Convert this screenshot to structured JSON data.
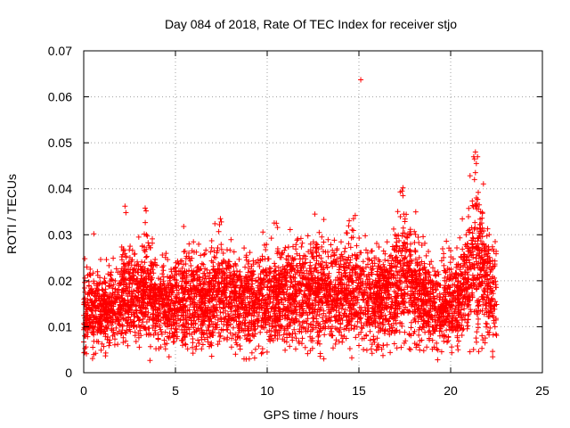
{
  "chart_data": {
    "type": "scatter",
    "title": "Day 084 of 2018, Rate Of TEC Index for receiver stjo",
    "xlabel": "GPS time / hours",
    "ylabel": "ROTI / TECUs",
    "xlim": [
      0,
      25
    ],
    "ylim": [
      0,
      0.07
    ],
    "xticks": [
      0,
      5,
      10,
      15,
      20,
      25
    ],
    "xtick_labels": [
      "0",
      "5",
      "10",
      "15",
      "20",
      "25"
    ],
    "yticks": [
      0,
      0.01,
      0.02,
      0.03,
      0.04,
      0.05,
      0.06,
      0.07
    ],
    "ytick_labels": [
      "0",
      "0.01",
      "0.02",
      "0.03",
      "0.04",
      "0.05",
      "0.06",
      "0.07"
    ],
    "grid": true,
    "marker": "+",
    "color": "#ff0000",
    "x_extent_hours": [
      0,
      22.5
    ],
    "typical_range": [
      0.003,
      0.025
    ],
    "envelope": [
      [
        0.0,
        0.024
      ],
      [
        1.0,
        0.025
      ],
      [
        2.0,
        0.026
      ],
      [
        2.3,
        0.036
      ],
      [
        3.0,
        0.029
      ],
      [
        3.3,
        0.036
      ],
      [
        4.0,
        0.027
      ],
      [
        5.0,
        0.028
      ],
      [
        5.5,
        0.031
      ],
      [
        6.5,
        0.028
      ],
      [
        7.5,
        0.033
      ],
      [
        8.5,
        0.028
      ],
      [
        9.5,
        0.029
      ],
      [
        10.5,
        0.032
      ],
      [
        11.5,
        0.031
      ],
      [
        12.5,
        0.034
      ],
      [
        13.5,
        0.031
      ],
      [
        14.8,
        0.034
      ],
      [
        15.5,
        0.03
      ],
      [
        16.5,
        0.031
      ],
      [
        17.5,
        0.04
      ],
      [
        18.5,
        0.03
      ],
      [
        19.5,
        0.027
      ],
      [
        20.5,
        0.03
      ],
      [
        21.4,
        0.048
      ],
      [
        22.5,
        0.03
      ]
    ],
    "outliers": [
      {
        "x": 15.1,
        "y": 0.0637
      },
      {
        "x": 21.35,
        "y": 0.048
      },
      {
        "x": 21.3,
        "y": 0.0465
      },
      {
        "x": 21.4,
        "y": 0.0455
      },
      {
        "x": 21.35,
        "y": 0.0435
      },
      {
        "x": 21.3,
        "y": 0.042
      },
      {
        "x": 21.4,
        "y": 0.038
      },
      {
        "x": 21.35,
        "y": 0.0365
      },
      {
        "x": 17.4,
        "y": 0.0402
      },
      {
        "x": 17.35,
        "y": 0.0395
      },
      {
        "x": 17.4,
        "y": 0.0385
      },
      {
        "x": 17.45,
        "y": 0.0345
      },
      {
        "x": 2.25,
        "y": 0.0362
      },
      {
        "x": 2.3,
        "y": 0.0348
      },
      {
        "x": 3.35,
        "y": 0.0358
      },
      {
        "x": 3.4,
        "y": 0.0352
      },
      {
        "x": 7.45,
        "y": 0.0335
      },
      {
        "x": 7.5,
        "y": 0.0328
      },
      {
        "x": 7.4,
        "y": 0.0322
      },
      {
        "x": 12.6,
        "y": 0.0345
      },
      {
        "x": 14.8,
        "y": 0.0342
      },
      {
        "x": 14.7,
        "y": 0.0335
      },
      {
        "x": 10.5,
        "y": 0.0325
      },
      {
        "x": 0.55,
        "y": 0.0302
      },
      {
        "x": 5.45,
        "y": 0.0318
      },
      {
        "x": 3.0,
        "y": 0.0295
      }
    ]
  }
}
